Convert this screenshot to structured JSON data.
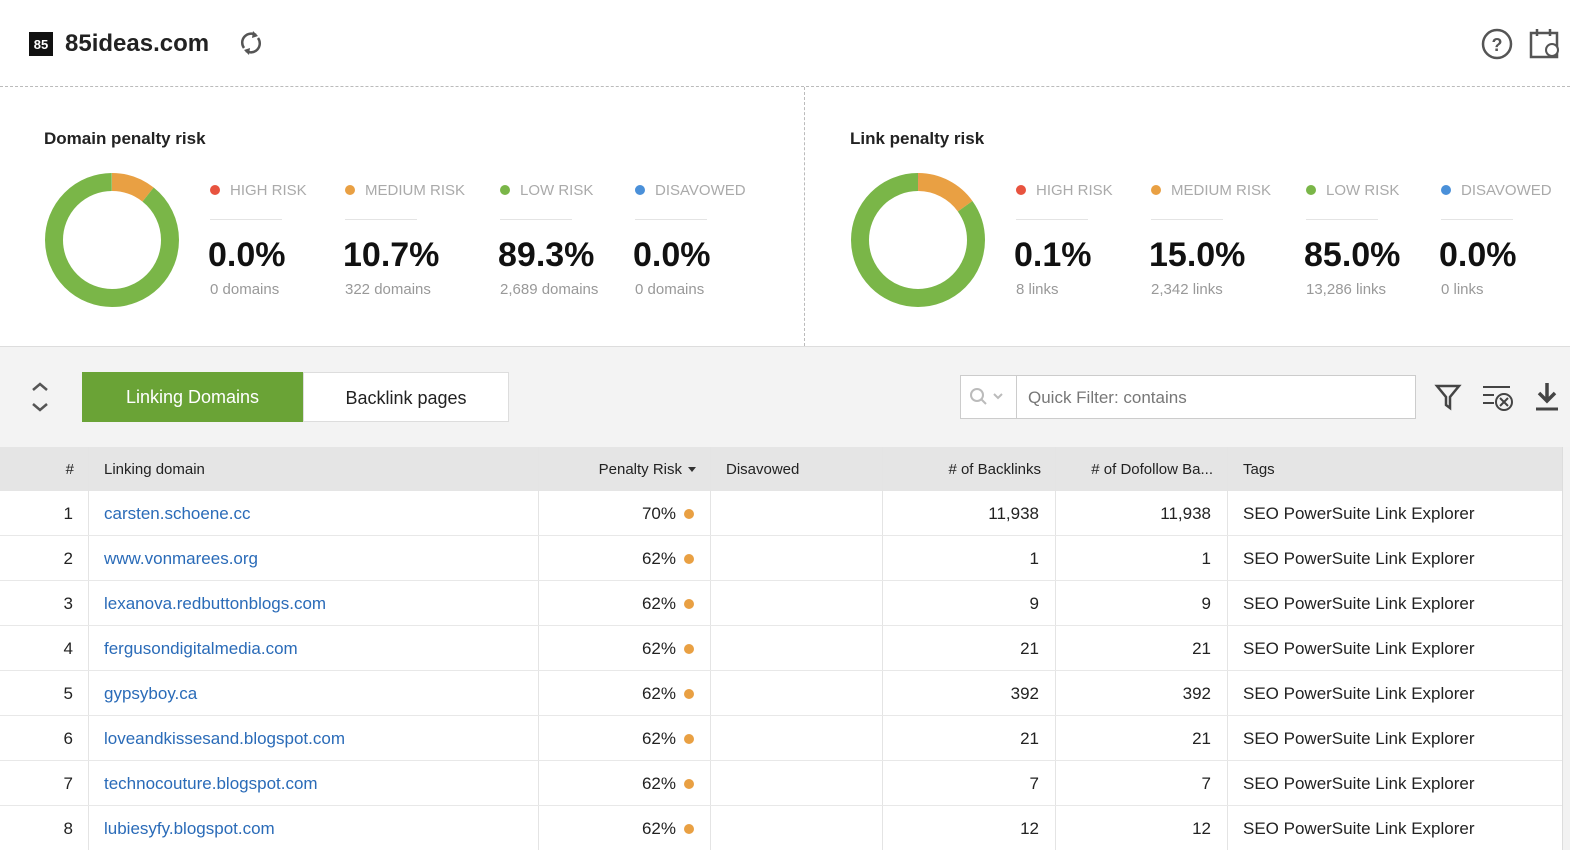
{
  "header": {
    "title": "85ideas.com"
  },
  "panels": [
    {
      "title": "Domain penalty risk",
      "stats": [
        {
          "label": "HIGH RISK",
          "color": "#e8533f",
          "value": 0.0,
          "value_label": "0.0%",
          "count": "0 domains"
        },
        {
          "label": "MEDIUM RISK",
          "color": "#e9a043",
          "value": 10.7,
          "value_label": "10.7%",
          "count": "322 domains"
        },
        {
          "label": "LOW RISK",
          "color": "#7ab648",
          "value": 89.3,
          "value_label": "89.3%",
          "count": "2,689 domains"
        },
        {
          "label": "DISAVOWED",
          "color": "#4a90d9",
          "value": 0.0,
          "value_label": "0.0%",
          "count": "0 domains"
        }
      ]
    },
    {
      "title": "Link penalty risk",
      "stats": [
        {
          "label": "HIGH RISK",
          "color": "#e8533f",
          "value": 0.1,
          "value_label": "0.1%",
          "count": "8 links"
        },
        {
          "label": "MEDIUM RISK",
          "color": "#e9a043",
          "value": 15.0,
          "value_label": "15.0%",
          "count": "2,342 links"
        },
        {
          "label": "LOW RISK",
          "color": "#7ab648",
          "value": 85.0,
          "value_label": "85.0%",
          "count": "13,286 links"
        },
        {
          "label": "DISAVOWED",
          "color": "#4a90d9",
          "value": 0.0,
          "value_label": "0.0%",
          "count": "0 links"
        }
      ]
    }
  ],
  "tabs": [
    "Linking Domains",
    "Backlink pages"
  ],
  "filter": {
    "placeholder": "Quick Filter: contains"
  },
  "table": {
    "columns": [
      "#",
      "Linking domain",
      "Penalty Risk",
      "Disavowed",
      "# of Backlinks",
      "# of Dofollow Ba...",
      "Tags"
    ],
    "rows": [
      {
        "num": "1",
        "domain": "carsten.schoene.cc",
        "risk": "70%",
        "backlinks": "11,938",
        "dofollow": "11,938",
        "tags": "SEO PowerSuite Link Explorer"
      },
      {
        "num": "2",
        "domain": "www.vonmarees.org",
        "risk": "62%",
        "backlinks": "1",
        "dofollow": "1",
        "tags": "SEO PowerSuite Link Explorer"
      },
      {
        "num": "3",
        "domain": "lexanova.redbuttonblogs.com",
        "risk": "62%",
        "backlinks": "9",
        "dofollow": "9",
        "tags": "SEO PowerSuite Link Explorer"
      },
      {
        "num": "4",
        "domain": "fergusondigitalmedia.com",
        "risk": "62%",
        "backlinks": "21",
        "dofollow": "21",
        "tags": "SEO PowerSuite Link Explorer"
      },
      {
        "num": "5",
        "domain": "gypsyboy.ca",
        "risk": "62%",
        "backlinks": "392",
        "dofollow": "392",
        "tags": "SEO PowerSuite Link Explorer"
      },
      {
        "num": "6",
        "domain": "loveandkissesand.blogspot.com",
        "risk": "62%",
        "backlinks": "21",
        "dofollow": "21",
        "tags": "SEO PowerSuite Link Explorer"
      },
      {
        "num": "7",
        "domain": "technocouture.blogspot.com",
        "risk": "62%",
        "backlinks": "7",
        "dofollow": "7",
        "tags": "SEO PowerSuite Link Explorer"
      },
      {
        "num": "8",
        "domain": "lubiesyfy.blogspot.com",
        "risk": "62%",
        "backlinks": "12",
        "dofollow": "12",
        "tags": "SEO PowerSuite Link Explorer"
      }
    ]
  }
}
